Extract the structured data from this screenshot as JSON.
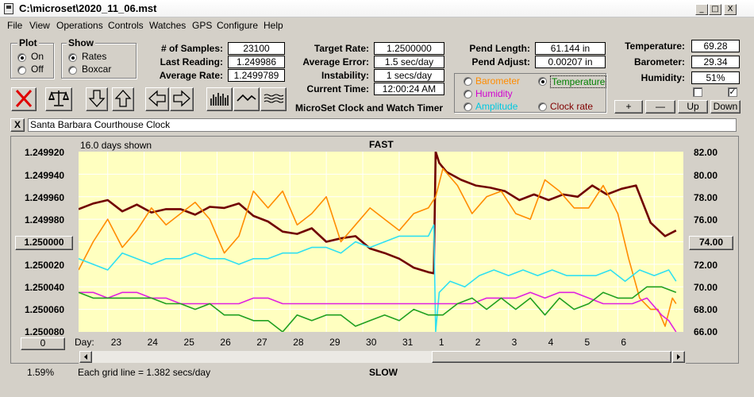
{
  "window": {
    "title": "C:\\microset\\2020_11_06.mst",
    "minimize": "_",
    "maximize": "□",
    "close": "X"
  },
  "menu": [
    "File",
    "View",
    "Operations",
    "Controls",
    "Watches",
    "GPS",
    "Configure",
    "Help"
  ],
  "plot_group": {
    "title": "Plot",
    "options": [
      "On",
      "Off"
    ],
    "selected": "On"
  },
  "show_group": {
    "title": "Show",
    "options": [
      "Rates",
      "Boxcar"
    ],
    "selected": "Rates"
  },
  "stats": {
    "samples_label": "# of Samples:",
    "samples": "23100",
    "last_reading_label": "Last Reading:",
    "last_reading": "1.249986",
    "average_rate_label": "Average Rate:",
    "average_rate": "1.2499789",
    "target_rate_label": "Target Rate:",
    "target_rate": "1.2500000",
    "average_error_label": "Average Error:",
    "average_error": "1.5 sec/day",
    "instability_label": "Instability:",
    "instability": "1 secs/day",
    "current_time_label": "Current Time:",
    "current_time": "12:00:24 AM",
    "pend_length_label": "Pend Length:",
    "pend_length": "61.144 in",
    "pend_adjust_label": "Pend Adjust:",
    "pend_adjust": "0.00207 in",
    "temperature_label": "Temperature:",
    "temperature": "69.28",
    "barometer_label": "Barometer:",
    "barometer": "29.34",
    "humidity_label": "Humidity:",
    "humidity": "51%"
  },
  "timer_title": "MicroSet Clock and Watch Timer",
  "sensor_options": [
    {
      "label": "Barometer",
      "color": "#ff8c00",
      "selected": false
    },
    {
      "label": "Temperature",
      "color": "#008000",
      "selected": true
    },
    {
      "label": "Humidity",
      "color": "#d000d0",
      "selected": false
    },
    {
      "label": "Amplitude",
      "color": "#00c8e0",
      "selected": false
    },
    {
      "label": "Clock rate",
      "color": "#800000",
      "selected": false
    }
  ],
  "sensor_buttons": {
    "plus": "+",
    "minus": "—",
    "up": "Up",
    "down": "Down"
  },
  "checkboxes": {
    "left_checked": false,
    "right_checked": true
  },
  "toolbar_icons": [
    "reset-icon",
    "balance-icon",
    "arrow-down-icon",
    "arrow-up-icon",
    "arrow-left-icon",
    "arrow-right-icon",
    "histogram-icon",
    "line-graph-icon",
    "wave-icon"
  ],
  "clock_name": {
    "close": "X",
    "value": "Santa Barbara Courthouse Clock"
  },
  "chart_header": {
    "days_shown": "16.0 days shown",
    "top_label": "FAST",
    "bottom_label": "SLOW",
    "grid_note": "Each grid line = 1.382 secs/day",
    "zoom": "1.59%"
  },
  "left_buttons": {
    "center_value": "1.250000",
    "bottom_value": "0"
  },
  "right_button": "74.00",
  "x_axis_label": "Day:",
  "colors": {
    "plot_bg": "#ffffc0",
    "grid": "#ffffff",
    "clock_rate": "#700000",
    "barometer": "#ff8c00",
    "amplitude": "#30e0f0",
    "humidity": "#e020e0",
    "temperature": "#20a020"
  },
  "chart_data": {
    "type": "line",
    "x_tick_labels": [
      "23",
      "24",
      "25",
      "26",
      "27",
      "28",
      "29",
      "30",
      "31",
      "1",
      "2",
      "3",
      "4",
      "5",
      "6"
    ],
    "left_axis": {
      "ticks": [
        "1.249920",
        "1.249940",
        "1.249960",
        "1.249980",
        "1.250000",
        "1.250020",
        "1.250040",
        "1.250060",
        "1.250080"
      ],
      "ylim": [
        1.24992,
        1.25008
      ],
      "inverted": true
    },
    "right_axis": {
      "ticks": [
        "82.00",
        "80.00",
        "78.00",
        "76.00",
        "74.00",
        "72.00",
        "70.00",
        "68.00",
        "66.00"
      ],
      "ylim": [
        66,
        82
      ]
    },
    "xlim": [
      22.2,
      38.8
    ],
    "series": [
      {
        "name": "Clock rate",
        "color": "#700000",
        "axis": "left",
        "x": [
          22.2,
          22.6,
          23.0,
          23.4,
          23.8,
          24.2,
          24.6,
          25.0,
          25.4,
          25.8,
          26.2,
          26.6,
          27.0,
          27.4,
          27.8,
          28.2,
          28.6,
          29.0,
          29.4,
          29.8,
          30.2,
          30.6,
          31.0,
          31.4,
          31.8,
          31.95,
          32.0,
          32.1,
          32.3,
          32.7,
          33.1,
          33.5,
          33.9,
          34.3,
          34.7,
          35.1,
          35.5,
          35.9,
          36.3,
          36.7,
          37.1,
          37.5,
          37.9,
          38.3,
          38.6
        ],
        "y": [
          1.249971,
          1.249966,
          1.249963,
          1.249973,
          1.249967,
          1.249974,
          1.249971,
          1.249971,
          1.249976,
          1.249969,
          1.24997,
          1.249966,
          1.249977,
          1.249982,
          1.249991,
          1.249993,
          1.249988,
          1.25,
          1.249997,
          1.249995,
          1.250006,
          1.25001,
          1.250015,
          1.250023,
          1.250027,
          1.250028,
          1.24992,
          1.24993,
          1.249938,
          1.249945,
          1.24995,
          1.249952,
          1.249955,
          1.249963,
          1.249958,
          1.249963,
          1.249958,
          1.24996,
          1.24995,
          1.249958,
          1.249953,
          1.24995,
          1.249983,
          1.249995,
          1.24999
        ]
      },
      {
        "name": "Barometer",
        "color": "#ff8c00",
        "axis": "right",
        "x": [
          22.2,
          22.6,
          23.0,
          23.4,
          23.8,
          24.2,
          24.6,
          25.0,
          25.4,
          25.8,
          26.2,
          26.6,
          27.0,
          27.4,
          27.8,
          28.2,
          28.6,
          29.0,
          29.4,
          29.8,
          30.2,
          30.6,
          31.0,
          31.4,
          31.8,
          32.0,
          32.2,
          32.6,
          33.0,
          33.4,
          33.8,
          34.2,
          34.6,
          35.0,
          35.4,
          35.8,
          36.2,
          36.6,
          37.0,
          37.3,
          37.6,
          37.9,
          38.1,
          38.3,
          38.5,
          38.6
        ],
        "y": [
          71.5,
          74.0,
          76.0,
          73.5,
          75.0,
          77.0,
          75.5,
          76.5,
          77.5,
          76.0,
          73.0,
          74.5,
          78.5,
          77.0,
          78.5,
          75.5,
          76.5,
          78.0,
          74.0,
          75.5,
          77.0,
          76.0,
          75.0,
          76.5,
          77.0,
          78.0,
          80.5,
          79.0,
          76.5,
          78.0,
          78.5,
          76.5,
          76.0,
          79.5,
          78.5,
          77.0,
          77.0,
          79.0,
          76.5,
          72.5,
          69.0,
          68.0,
          68.0,
          66.5,
          69.0,
          68.5
        ]
      },
      {
        "name": "Amplitude",
        "color": "#30e0f0",
        "axis": "right",
        "x": [
          22.2,
          22.6,
          23.0,
          23.4,
          23.8,
          24.2,
          24.6,
          25.0,
          25.4,
          25.8,
          26.2,
          26.6,
          27.0,
          27.4,
          27.8,
          28.2,
          28.6,
          29.0,
          29.4,
          29.8,
          30.2,
          30.6,
          31.0,
          31.4,
          31.8,
          31.95,
          32.0,
          32.1,
          32.4,
          32.8,
          33.2,
          33.6,
          34.0,
          34.4,
          34.8,
          35.2,
          35.6,
          36.0,
          36.4,
          36.8,
          37.2,
          37.6,
          38.0,
          38.4,
          38.6
        ],
        "y": [
          72.5,
          72.0,
          71.5,
          73.0,
          72.5,
          72.0,
          72.5,
          72.5,
          73.0,
          72.5,
          72.5,
          72.0,
          72.5,
          72.5,
          73.0,
          73.0,
          73.5,
          73.5,
          73.0,
          74.0,
          73.5,
          74.0,
          74.5,
          74.5,
          74.5,
          75.5,
          66.0,
          69.5,
          70.5,
          70.0,
          71.0,
          71.5,
          71.0,
          71.5,
          71.0,
          71.5,
          71.0,
          71.0,
          71.0,
          71.5,
          70.5,
          71.5,
          71.0,
          71.5,
          70.5
        ]
      },
      {
        "name": "Humidity",
        "color": "#e020e0",
        "axis": "right",
        "x": [
          22.2,
          22.6,
          23.0,
          23.4,
          23.8,
          24.2,
          24.6,
          25.0,
          25.4,
          25.8,
          26.2,
          26.6,
          27.0,
          27.4,
          27.8,
          28.2,
          28.6,
          29.0,
          29.4,
          29.8,
          30.2,
          30.6,
          31.0,
          31.4,
          31.8,
          32.0,
          32.2,
          32.6,
          33.0,
          33.4,
          33.8,
          34.2,
          34.6,
          35.0,
          35.4,
          35.8,
          36.2,
          36.6,
          37.0,
          37.4,
          37.8,
          38.2,
          38.4,
          38.6
        ],
        "y": [
          69.5,
          69.5,
          69.0,
          69.5,
          69.5,
          69.0,
          69.0,
          68.5,
          68.5,
          68.5,
          68.5,
          68.5,
          69.0,
          69.0,
          68.5,
          68.5,
          68.5,
          68.5,
          68.5,
          68.5,
          68.5,
          68.5,
          68.5,
          68.5,
          68.5,
          68.5,
          68.5,
          68.5,
          68.5,
          69.0,
          69.0,
          69.0,
          69.5,
          69.0,
          69.5,
          69.5,
          69.0,
          68.5,
          68.5,
          68.5,
          69.0,
          67.5,
          67.0,
          66.0
        ]
      },
      {
        "name": "Temperature",
        "color": "#20a020",
        "axis": "right",
        "x": [
          22.2,
          22.6,
          23.0,
          23.4,
          23.8,
          24.2,
          24.6,
          25.0,
          25.4,
          25.8,
          26.2,
          26.6,
          27.0,
          27.4,
          27.8,
          28.2,
          28.6,
          29.0,
          29.4,
          29.8,
          30.2,
          30.6,
          31.0,
          31.4,
          31.8,
          32.0,
          32.2,
          32.6,
          33.0,
          33.4,
          33.8,
          34.2,
          34.6,
          35.0,
          35.4,
          35.8,
          36.2,
          36.6,
          37.0,
          37.4,
          37.8,
          38.2,
          38.6
        ],
        "y": [
          69.5,
          69.0,
          69.0,
          69.0,
          69.0,
          69.0,
          68.5,
          68.5,
          68.0,
          68.5,
          67.5,
          67.5,
          67.0,
          67.0,
          66.0,
          67.5,
          67.0,
          67.5,
          67.5,
          66.5,
          67.0,
          67.5,
          67.0,
          68.0,
          67.5,
          67.5,
          67.5,
          68.5,
          69.0,
          68.0,
          69.0,
          68.0,
          69.0,
          67.5,
          69.0,
          68.0,
          68.5,
          69.5,
          69.0,
          69.0,
          70.0,
          70.0,
          69.5
        ]
      }
    ]
  }
}
